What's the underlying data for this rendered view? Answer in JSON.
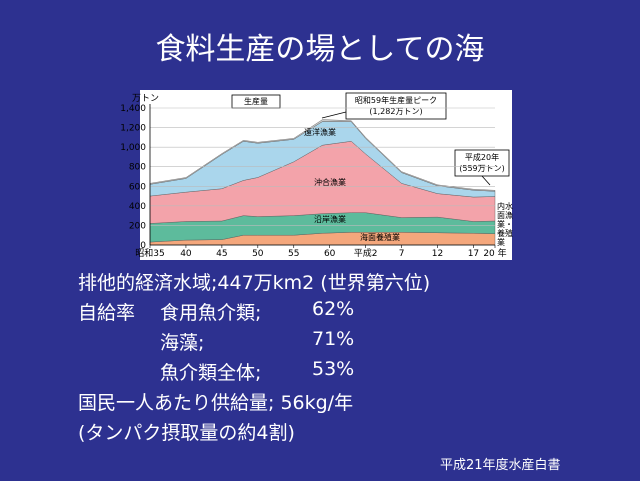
{
  "slide": {
    "title": "食料生産の場としての海",
    "eez": "排他的経済水域;447万km2 (世界第六位)",
    "self_sufficiency_label": "自給率",
    "self_sufficiency": [
      {
        "item": "食用魚介類;",
        "rate": "62%"
      },
      {
        "item": "海藻;",
        "rate": "71%"
      },
      {
        "item": "魚介類全体;",
        "rate": "53%"
      }
    ],
    "supply": "国民一人あたり供給量; 56kg/年",
    "protein": "(タンパク摂取量の約4割)",
    "source": "平成21年度水産白書"
  },
  "chart_data": {
    "type": "stacked_area",
    "title": "生産量",
    "y_label": "万トン",
    "annotations": [
      {
        "lines": [
          "昭和59年生産量ピーク",
          "(1,282万トン)"
        ]
      },
      {
        "lines": [
          "平成20年",
          "(559万トン)"
        ]
      }
    ],
    "x": [
      1960,
      1965,
      1970,
      1973,
      1975,
      1980,
      1984,
      1988,
      1990,
      1995,
      2000,
      2005,
      2008
    ],
    "xlim": [
      1960,
      2008
    ],
    "xticks": [
      {
        "value": 1960,
        "label": "昭和35"
      },
      {
        "value": 1965,
        "label": "40"
      },
      {
        "value": 1970,
        "label": "45"
      },
      {
        "value": 1975,
        "label": "50"
      },
      {
        "value": 1980,
        "label": "55"
      },
      {
        "value": 1985,
        "label": "60"
      },
      {
        "value": 1990,
        "label": "平成2"
      },
      {
        "value": 1995,
        "label": "7"
      },
      {
        "value": 2000,
        "label": "12"
      },
      {
        "value": 2005,
        "label": "17"
      },
      {
        "value": 2008,
        "label": "20 年"
      }
    ],
    "ylim": [
      0,
      1400
    ],
    "yticks": [
      0,
      200,
      400,
      600,
      800,
      {
        "value": 1000,
        "label": "1,000"
      },
      {
        "value": 1200,
        "label": "1,200"
      },
      {
        "value": 1400,
        "label": "1,400"
      }
    ],
    "series": [
      {
        "name": "海面養殖業",
        "color": "#f4a77c",
        "values": [
          30,
          50,
          55,
          100,
          100,
          100,
          120,
          130,
          130,
          130,
          125,
          120,
          115
        ]
      },
      {
        "name": "沿岸漁業",
        "color": "#5dbb9c",
        "values": [
          190,
          190,
          190,
          200,
          190,
          200,
          200,
          200,
          200,
          150,
          160,
          120,
          130
        ]
      },
      {
        "name": "沖合漁業",
        "color": "#f3a3aa",
        "values": [
          280,
          300,
          330,
          360,
          400,
          550,
          700,
          730,
          600,
          350,
          240,
          250,
          250
        ]
      },
      {
        "name": "遠洋漁業",
        "color": "#aad6ec",
        "values": [
          120,
          140,
          350,
          400,
          350,
          230,
          242,
          200,
          160,
          110,
          80,
          70,
          54
        ]
      },
      {
        "name": "内水面漁業・養殖業",
        "color": "#c9c9c9",
        "values": [
          10,
          10,
          10,
          10,
          10,
          10,
          20,
          10,
          10,
          10,
          10,
          10,
          10
        ]
      }
    ]
  }
}
